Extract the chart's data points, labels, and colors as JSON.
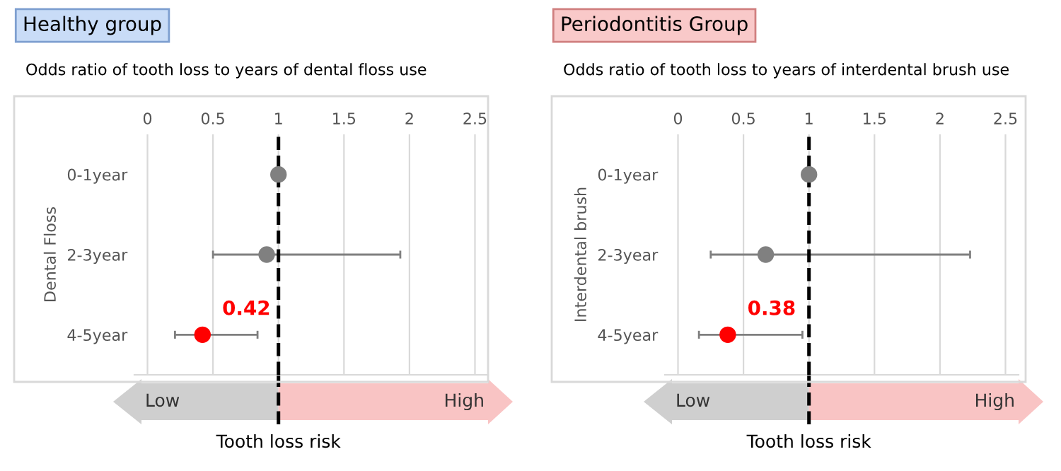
{
  "chart_data": [
    {
      "type": "scatter",
      "title": "Healthy group",
      "subtitle": "Odds ratio of tooth loss to years of dental floss use",
      "ylabel": "Dental Floss",
      "categories": [
        "0-1year",
        "2-3year",
        "4-5year"
      ],
      "orientation": "horizontal",
      "values": [
        1.0,
        0.91,
        0.42
      ],
      "colors": [
        "#808080",
        "#808080",
        "#ff0000"
      ],
      "errors": [
        null,
        [
          0.5,
          1.93
        ],
        [
          0.21,
          0.84
        ]
      ],
      "value_labels": [
        null,
        null,
        "0.42"
      ],
      "xlim": [
        -0.1,
        2.6
      ],
      "xticks": [
        0,
        0.5,
        1,
        1.5,
        2,
        2.5
      ],
      "grid": "x",
      "marker": "circle",
      "ref_lines": [
        {
          "axis": "x",
          "value": 1,
          "color": "#000000",
          "line_style": "dashed"
        }
      ],
      "annotations": [
        "Low",
        "High",
        "Tooth loss risk"
      ]
    },
    {
      "type": "scatter",
      "title": "Periodontitis Group",
      "subtitle": "Odds ratio of tooth loss to years of interdental brush use",
      "ylabel": "Interdental brush",
      "categories": [
        "0-1year",
        "2-3year",
        "4-5year"
      ],
      "orientation": "horizontal",
      "values": [
        1.0,
        0.67,
        0.38
      ],
      "colors": [
        "#808080",
        "#808080",
        "#ff0000"
      ],
      "errors": [
        null,
        [
          0.25,
          2.23
        ],
        [
          0.16,
          0.95
        ]
      ],
      "value_labels": [
        null,
        null,
        "0.38"
      ],
      "xlim": [
        -0.1,
        2.6
      ],
      "xticks": [
        0,
        0.5,
        1,
        1.5,
        2,
        2.5
      ],
      "grid": "x",
      "marker": "circle",
      "ref_lines": [
        {
          "axis": "x",
          "value": 1,
          "color": "#000000",
          "line_style": "dashed"
        }
      ],
      "annotations": [
        "Low",
        "High",
        "Tooth loss risk"
      ]
    }
  ]
}
